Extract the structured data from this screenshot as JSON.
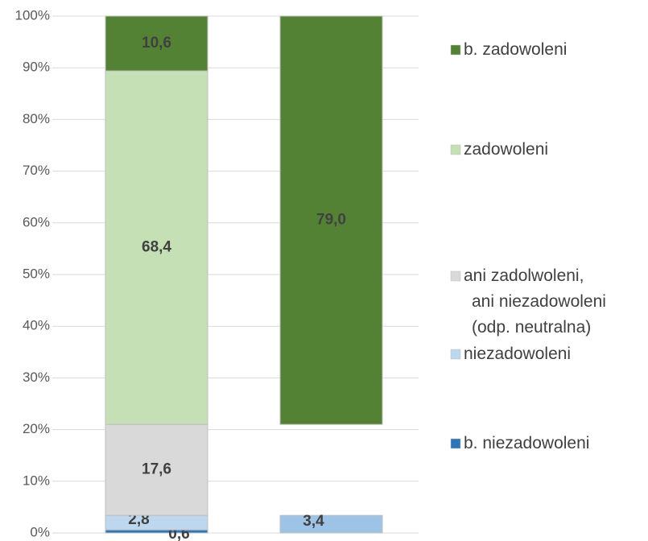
{
  "chart_data": {
    "type": "stacked_bar_100",
    "categories": [
      null,
      null
    ],
    "series": [
      {
        "name": "b. niezadowoleni",
        "color": "#2e75b6",
        "values": [
          0.6,
          null
        ],
        "value_labels": [
          "0,6",
          null
        ]
      },
      {
        "name": "niezadowoleni",
        "color": "#bdd7ee",
        "colors": [
          "#bdd7ee",
          "#9dc3e6"
        ],
        "values": [
          2.8,
          3.4
        ],
        "value_labels": [
          "2,8",
          "3,4"
        ]
      },
      {
        "name": "ani zadolwoleni,\nani niezadowoleni\n(odp. neutralna)",
        "color": "#d9d9d9",
        "colors": [
          "#d9d9d9",
          "none"
        ],
        "values": [
          17.6,
          17.6
        ],
        "value_labels": [
          "17,6",
          null
        ]
      },
      {
        "name": "zadowoleni",
        "color": "#c5e0b4",
        "values": [
          68.4,
          null
        ],
        "value_labels": [
          "68,4",
          null
        ]
      },
      {
        "name": "b. zadowoleni",
        "color": "#548235",
        "values": [
          10.6,
          79.0
        ],
        "value_labels": [
          "10,6",
          "79,0"
        ]
      }
    ],
    "ylim": [
      0,
      100
    ],
    "yticks": [
      {
        "value": 0,
        "label": "0%"
      },
      {
        "value": 10,
        "label": "10%"
      },
      {
        "value": 20,
        "label": "20%"
      },
      {
        "value": 30,
        "label": "30%"
      },
      {
        "value": 40,
        "label": "40%"
      },
      {
        "value": 50,
        "label": "50%"
      },
      {
        "value": 60,
        "label": "60%"
      },
      {
        "value": 70,
        "label": "70%"
      },
      {
        "value": 80,
        "label": "80%"
      },
      {
        "value": 90,
        "label": "90%"
      },
      {
        "value": 100,
        "label": "100%"
      }
    ],
    "grid": true,
    "legend": "right"
  }
}
